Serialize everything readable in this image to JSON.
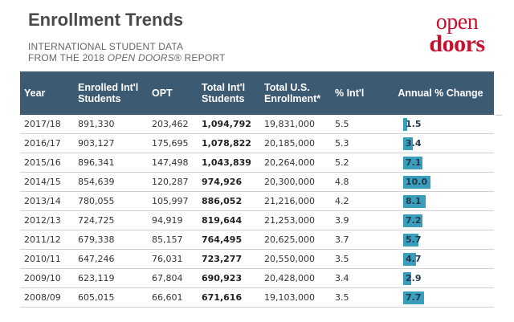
{
  "header": {
    "title": "Enrollment Trends",
    "subtitle_line1": "INTERNATIONAL STUDENT DATA",
    "subtitle_line2_prefix": "FROM THE 2018 ",
    "subtitle_line2_italic": "OPEN DOORS",
    "subtitle_line2_suffix": "® REPORT"
  },
  "logo": {
    "line1": "open",
    "line2": "doors"
  },
  "colors": {
    "header_bg": "#3d5a73",
    "bar": "#3a9ebc",
    "logo_red": "#c8102e"
  },
  "chart_data": {
    "type": "table",
    "columns": [
      "Year",
      "Enrolled Int'l Students",
      "OPT",
      "Total Int'l Students",
      "Total U.S. Enrollment*",
      "% Int'l",
      "Annual % Change"
    ],
    "column_lines": [
      [
        "Year"
      ],
      [
        "Enrolled Int'l",
        "Students"
      ],
      [
        "OPT"
      ],
      [
        "Total Int'l",
        "Students"
      ],
      [
        "Total U.S.",
        "Enrollment*"
      ],
      [
        "% Int'l"
      ],
      [
        "Annual % Change"
      ]
    ],
    "rows": [
      [
        "2017/18",
        "891,330",
        "203,462",
        "1,094,792",
        "19,831,000",
        "5.5",
        "1.5"
      ],
      [
        "2016/17",
        "903,127",
        "175,695",
        "1,078,822",
        "20,185,000",
        "5.3",
        "3.4"
      ],
      [
        "2015/16",
        "896,341",
        "147,498",
        "1,043,839",
        "20,264,000",
        "5.2",
        "7.1"
      ],
      [
        "2014/15",
        "854,639",
        "120,287",
        "974,926",
        "20,300,000",
        "4.8",
        "10.0"
      ],
      [
        "2013/14",
        "780,055",
        "105,997",
        "886,052",
        "21,216,000",
        "4.2",
        "8.1"
      ],
      [
        "2012/13",
        "724,725",
        "94,919",
        "819,644",
        "21,253,000",
        "3.9",
        "7.2"
      ],
      [
        "2011/12",
        "679,338",
        "85,157",
        "764,495",
        "20,625,000",
        "3.7",
        "5.7"
      ],
      [
        "2010/11",
        "647,246",
        "76,031",
        "723,277",
        "20,550,000",
        "3.5",
        "4.7"
      ],
      [
        "2009/10",
        "623,119",
        "67,804",
        "690,923",
        "20,428,000",
        "3.4",
        "2.9"
      ],
      [
        "2008/09",
        "605,015",
        "66,601",
        "671,616",
        "19,103,000",
        "3.5",
        "7.7"
      ]
    ],
    "bar_column": 6,
    "bar_max": 10.0
  }
}
